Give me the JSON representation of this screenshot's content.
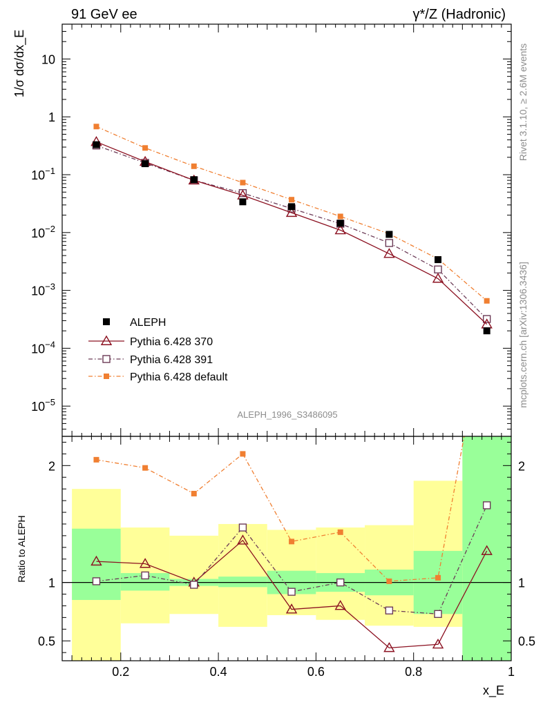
{
  "header": {
    "left": "91 GeV ee",
    "right": "γ*/Z (Hadronic)"
  },
  "side_labels": {
    "rivet": "Rivet 3.1.10, ≥ 2.6M events",
    "mcplots": "mcplots.cern.ch [arXiv:1306.3436]"
  },
  "analysis_id": "ALEPH_1996_S3486095",
  "colors": {
    "aleph": "#000000",
    "p370": "#8b1020",
    "p391": "#6b3a56",
    "pdefault": "#f07f31",
    "band_inner": "#99ff99",
    "band_outer": "#ffff99"
  },
  "chart_data": [
    {
      "type": "scatter",
      "panel": "main",
      "ylabel": "1/σ dσ/dx_E",
      "yscale": "log",
      "ylim": [
        3e-06,
        40
      ],
      "xlim": [
        0.08,
        1.0
      ],
      "y_ticks": [
        {
          "value": 10,
          "label": "10"
        },
        {
          "value": 1,
          "label": "1"
        },
        {
          "value": 0.1,
          "label": "10^-1"
        },
        {
          "value": 0.01,
          "label": "10^-2"
        },
        {
          "value": 0.001,
          "label": "10^-3"
        },
        {
          "value": 0.0001,
          "label": "10^-4"
        },
        {
          "value": 1e-05,
          "label": "10^-5"
        }
      ],
      "x": [
        0.15,
        0.25,
        0.35,
        0.45,
        0.55,
        0.65,
        0.75,
        0.85,
        0.95
      ],
      "series": [
        {
          "name": "ALEPH",
          "key": "aleph",
          "values": [
            0.33,
            0.155,
            0.082,
            0.034,
            0.028,
            0.0145,
            0.0093,
            0.0034,
            0.0002
          ]
        },
        {
          "name": "Pythia 6.428 370",
          "key": "p370",
          "values": [
            0.37,
            0.168,
            0.08,
            0.044,
            0.022,
            0.011,
            0.0043,
            0.0016,
            0.00026
          ]
        },
        {
          "name": "Pythia 6.428 391",
          "key": "p391",
          "values": [
            0.32,
            0.16,
            0.08,
            0.048,
            0.026,
            0.0142,
            0.0066,
            0.0023,
            0.00032
          ]
        },
        {
          "name": "Pythia 6.428 default",
          "key": "pdefault",
          "values": [
            0.68,
            0.29,
            0.14,
            0.073,
            0.037,
            0.019,
            0.0095,
            0.0035,
            0.00066
          ]
        }
      ],
      "legend": "lower-left"
    },
    {
      "type": "line",
      "panel": "ratio",
      "ylabel": "Ratio to ALEPH",
      "xlabel": "x_E",
      "ylim": [
        0.33,
        2.25
      ],
      "xlim": [
        0.08,
        1.0
      ],
      "x_ticks": [
        0.2,
        0.4,
        0.6,
        0.8,
        1
      ],
      "x_tick_labels": [
        "0.2",
        "0.4",
        "0.6",
        "0.8",
        "1"
      ],
      "y_ticks": [
        {
          "value": 2,
          "label": "2"
        },
        {
          "value": 1,
          "label": "1"
        },
        {
          "value": 0.5,
          "label": "0.5"
        }
      ],
      "x": [
        0.15,
        0.25,
        0.35,
        0.45,
        0.55,
        0.65,
        0.75,
        0.85,
        0.95
      ],
      "bins": [
        [
          0.1,
          0.2
        ],
        [
          0.2,
          0.3
        ],
        [
          0.3,
          0.4
        ],
        [
          0.4,
          0.5
        ],
        [
          0.5,
          0.6
        ],
        [
          0.6,
          0.7
        ],
        [
          0.7,
          0.8
        ],
        [
          0.8,
          0.9
        ],
        [
          0.9,
          1.0
        ]
      ],
      "band_inner": [
        [
          0.85,
          1.46
        ],
        [
          0.93,
          1.08
        ],
        [
          0.97,
          1.03
        ],
        [
          0.96,
          1.05
        ],
        [
          0.9,
          1.1
        ],
        [
          0.92,
          1.08
        ],
        [
          0.89,
          1.11
        ],
        [
          0.73,
          1.27
        ],
        [
          0.1,
          3.0
        ]
      ],
      "band_outer": [
        [
          0.33,
          1.8
        ],
        [
          0.65,
          1.47
        ],
        [
          0.73,
          1.4
        ],
        [
          0.62,
          1.5
        ],
        [
          0.72,
          1.45
        ],
        [
          0.68,
          1.47
        ],
        [
          0.63,
          1.49
        ],
        [
          0.62,
          1.87
        ],
        [
          0.1,
          3.0
        ]
      ],
      "series": [
        {
          "name": "Pythia 6.428 370",
          "key": "p370",
          "values": [
            1.18,
            1.16,
            1.0,
            1.36,
            0.77,
            0.8,
            0.44,
            0.47,
            1.27
          ]
        },
        {
          "name": "Pythia 6.428 391",
          "key": "p391",
          "values": [
            1.01,
            1.06,
            0.98,
            1.47,
            0.92,
            1.0,
            0.76,
            0.73,
            1.66
          ]
        },
        {
          "name": "Pythia 6.428 default",
          "key": "pdefault",
          "values": [
            2.05,
            1.98,
            1.76,
            2.1,
            1.35,
            1.43,
            1.01,
            1.04,
            3.3
          ]
        }
      ]
    }
  ]
}
